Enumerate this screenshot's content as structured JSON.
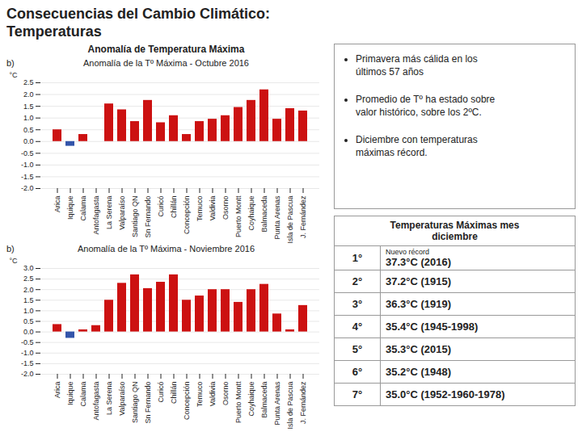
{
  "title": "Consecuencias del Cambio Climático:\nTemperaturas",
  "subtitle": "Anomalía de Temperatura Máxima",
  "annotations": [
    "Primavera más cálida en los\núltimos 57 años",
    "Promedio de Tº ha estado sobre\nvalor histórico,   sobre los 2ºC.",
    "Diciembre con temperaturas\nmáximas récord."
  ],
  "table": {
    "title": "Temperaturas Máximas mes\ndiciembre",
    "rows": [
      {
        "rank": "1°",
        "value": "37.3°C (2016)",
        "note": "Nuevo récord"
      },
      {
        "rank": "2°",
        "value": "37.2°C (1915)"
      },
      {
        "rank": "3°",
        "value": "36.3°C (1919)"
      },
      {
        "rank": "4°",
        "value": "35.4°C (1945-1998)"
      },
      {
        "rank": "5°",
        "value": "35.3°C (2015)"
      },
      {
        "rank": "6°",
        "value": "35.2°C (1948)"
      },
      {
        "rank": "7°",
        "value": "35.0°C (1952-1960-1978)"
      }
    ]
  },
  "chart_data": [
    {
      "type": "bar",
      "title": "Anomalía de la Tº Máxima - Octubre 2016",
      "y_label": "°C",
      "annotations": [
        "b)"
      ],
      "categories": [
        "Arica",
        "Iquique",
        "Calama",
        "Antofagasta",
        "La Serena",
        "Valparaíso",
        "Santiago QN",
        "Sn Fernando",
        "Curicó",
        "Chillán",
        "Concepción",
        "Temuco",
        "Valdivia",
        "Osorno",
        "Puerto Montt",
        "Coyhaique",
        "Balmaceda",
        "Punta Arenas",
        "Isla de Pascua",
        "J. Fernández"
      ],
      "values": [
        0.5,
        -0.2,
        0.3,
        0.0,
        1.6,
        1.35,
        0.85,
        1.75,
        0.8,
        1.1,
        0.3,
        0.85,
        0.95,
        1.1,
        1.45,
        1.75,
        2.2,
        0.95,
        1.4,
        1.3
      ],
      "colors": [
        "#cc1111",
        "#3355aa",
        "#cc1111",
        "#cc1111",
        "#cc1111",
        "#cc1111",
        "#cc1111",
        "#cc1111",
        "#cc1111",
        "#cc1111",
        "#cc1111",
        "#cc1111",
        "#cc1111",
        "#cc1111",
        "#cc1111",
        "#cc1111",
        "#cc1111",
        "#cc1111",
        "#cc1111",
        "#cc1111"
      ],
      "ylim": [
        -2.0,
        2.5
      ],
      "yticks": [
        {
          "value": -2,
          "label": "-2.0"
        },
        -1.5,
        {
          "value": -1,
          "label": "-1.0"
        },
        -0.5,
        {
          "value": 0,
          "label": "0.0"
        },
        0.5,
        {
          "value": 1,
          "label": "1.0"
        },
        1.5,
        {
          "value": 2,
          "label": "2.0"
        },
        2.5
      ],
      "grid": true
    },
    {
      "type": "bar",
      "title": "Anomalía de la Tº Máxima - Noviembre 2016",
      "y_label": "°C",
      "annotations": [
        "b)"
      ],
      "categories": [
        "Arica",
        "Iquique",
        "Calama",
        "Antofagasta",
        "La Serena",
        "Valparaíso",
        "Santiago QN",
        "Sn Fernando",
        "Curicó",
        "Chillán",
        "Concepción",
        "Temuco",
        "Valdivia",
        "Osorno",
        "Puerto Montt",
        "Coyhaique",
        "Balmaceda",
        "Punta Arenas",
        "Isla de Pascua",
        "J. Fernández"
      ],
      "values": [
        0.35,
        -0.3,
        0.1,
        0.3,
        1.5,
        2.3,
        2.7,
        2.05,
        2.35,
        2.7,
        1.5,
        1.7,
        2.0,
        2.0,
        1.4,
        2.0,
        2.25,
        0.85,
        0.1,
        1.25
      ],
      "colors": [
        "#cc1111",
        "#3355aa",
        "#cc1111",
        "#cc1111",
        "#cc1111",
        "#cc1111",
        "#cc1111",
        "#cc1111",
        "#cc1111",
        "#cc1111",
        "#cc1111",
        "#cc1111",
        "#cc1111",
        "#cc1111",
        "#cc1111",
        "#cc1111",
        "#cc1111",
        "#cc1111",
        "#cc1111",
        "#cc1111"
      ],
      "ylim": [
        -2.0,
        3.0
      ],
      "yticks": [
        {
          "value": -2,
          "label": "-2.0"
        },
        -1.5,
        {
          "value": -1,
          "label": "-1.0"
        },
        -0.5,
        {
          "value": 0,
          "label": "0.0"
        },
        0.5,
        {
          "value": 1,
          "label": "1.0"
        },
        1.5,
        {
          "value": 2,
          "label": "2.0"
        },
        2.5,
        {
          "value": 3,
          "label": "3.0"
        }
      ],
      "grid": true
    }
  ]
}
